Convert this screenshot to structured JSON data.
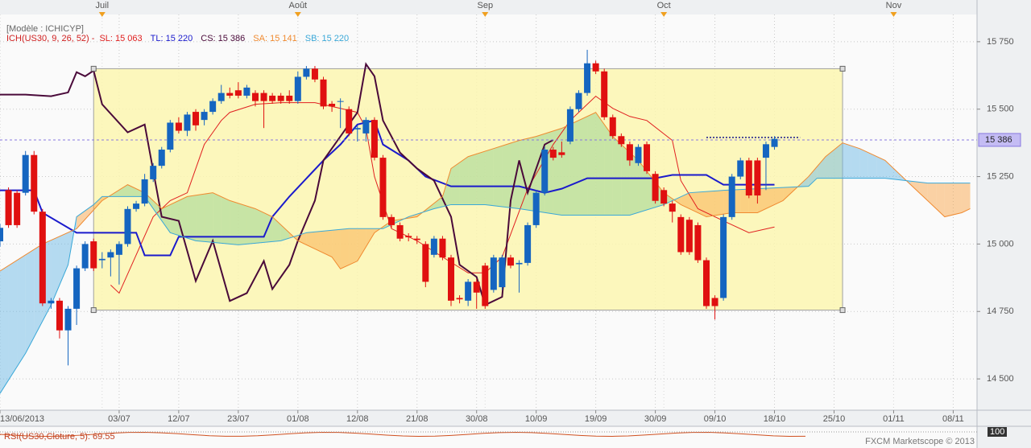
{
  "chart_data": {
    "type": "candlestick",
    "model_label": "[Modèle : ICHICYP]",
    "indicator_label": "ICH(US30, 9, 26, 52) -",
    "xlim": [
      0,
      114.8
    ],
    "ylim": [
      14384,
      15851
    ],
    "grid": true,
    "xticks": [
      {
        "value": 0,
        "label": "13/06/2013"
      },
      {
        "value": 14,
        "label": "03/07"
      },
      {
        "value": 21,
        "label": "12/07"
      },
      {
        "value": 28,
        "label": "23/07"
      },
      {
        "value": 35,
        "label": "01/08"
      },
      {
        "value": 42,
        "label": "12/08"
      },
      {
        "value": 49,
        "label": "21/08"
      },
      {
        "value": 56,
        "label": "30/08"
      },
      {
        "value": 63,
        "label": "10/09"
      },
      {
        "value": 70,
        "label": "19/09"
      },
      {
        "value": 77,
        "label": "30/09"
      },
      {
        "value": 84,
        "label": "09/10"
      },
      {
        "value": 91,
        "label": "18/10"
      },
      {
        "value": 98,
        "label": "25/10"
      },
      {
        "value": 105,
        "label": "01/11"
      },
      {
        "value": 112,
        "label": "08/11"
      }
    ],
    "x2ticks": [
      {
        "value": 12,
        "label": "Juil"
      },
      {
        "value": 35,
        "label": "Août"
      },
      {
        "value": 57,
        "label": "Sep"
      },
      {
        "value": 78,
        "label": "Oct"
      },
      {
        "value": 105,
        "label": "Nov"
      }
    ],
    "yticks": [
      {
        "value": 14500,
        "label": "14 500"
      },
      {
        "value": 14750,
        "label": "14 750"
      },
      {
        "value": 15000,
        "label": "15 000"
      },
      {
        "value": 15250,
        "label": "15 250"
      },
      {
        "value": 15500,
        "label": "15 500"
      },
      {
        "value": 15750,
        "label": "15 750"
      }
    ],
    "candles": {
      "up_color": "#1565c0",
      "down_color": "#e01010",
      "x": [
        0,
        1,
        2,
        3,
        4,
        5,
        6,
        7,
        8,
        9,
        10,
        11,
        12,
        13,
        14,
        15,
        16,
        17,
        18,
        19,
        20,
        21,
        22,
        23,
        24,
        25,
        26,
        27,
        28,
        29,
        30,
        31,
        32,
        33,
        34,
        35,
        36,
        37,
        38,
        39,
        40,
        41,
        42,
        43,
        44,
        45,
        46,
        47,
        48,
        49,
        50,
        51,
        52,
        53,
        54,
        55,
        56,
        57,
        58,
        59,
        60,
        61,
        62,
        63,
        64,
        65,
        66,
        67,
        68,
        69,
        70,
        71,
        72,
        73,
        74,
        75,
        76,
        77,
        78,
        79,
        80,
        81,
        82,
        83,
        84,
        85,
        86,
        87,
        88,
        89,
        90,
        91
      ],
      "open": [
        15010,
        15200,
        15190,
        15190,
        15330,
        15120,
        14780,
        14790,
        14680,
        14760,
        14910,
        15010,
        14940,
        14950,
        14960,
        15000,
        15130,
        15150,
        15240,
        15290,
        15350,
        15450,
        15420,
        15490,
        15460,
        15490,
        15530,
        15560,
        15570,
        15550,
        15560,
        15560,
        15550,
        15550,
        15550,
        15530,
        15620,
        15650,
        15610,
        15520,
        15530,
        15500,
        15425,
        15410,
        15460,
        15320,
        15100,
        15070,
        15030,
        15020,
        15000,
        14960,
        15020,
        14950,
        14800,
        14790,
        14860,
        14920,
        14830,
        14840,
        14950,
        14925,
        14930,
        15070,
        15190,
        15350,
        15340,
        15380,
        15500,
        15560,
        15670,
        15640,
        15470,
        15400,
        15370,
        15300,
        15370,
        15260,
        15200,
        15150,
        15100,
        15090,
        15070,
        14940,
        14800,
        14800,
        15100,
        15250,
        15310,
        15310,
        15320,
        15360
      ],
      "high": [
        15075,
        15210,
        15200,
        15345,
        15345,
        15130,
        14800,
        14800,
        14770,
        14920,
        15010,
        15020,
        14970,
        14980,
        15010,
        15140,
        15160,
        15260,
        15300,
        15360,
        15460,
        15470,
        15490,
        15500,
        15500,
        15540,
        15590,
        15580,
        15600,
        15590,
        15570,
        15570,
        15560,
        15560,
        15570,
        15640,
        15660,
        15660,
        15620,
        15530,
        15540,
        15510,
        15440,
        15470,
        15470,
        15330,
        15110,
        15080,
        15040,
        15030,
        15010,
        15030,
        15030,
        14960,
        14810,
        14870,
        14870,
        14930,
        14960,
        14960,
        14960,
        14940,
        15080,
        15200,
        15360,
        15360,
        15380,
        15510,
        15570,
        15720,
        15680,
        15650,
        15480,
        15410,
        15380,
        15370,
        15380,
        15270,
        15210,
        15160,
        15110,
        15100,
        15080,
        14950,
        14810,
        15110,
        15260,
        15320,
        15320,
        15320,
        15380,
        15400
      ],
      "low": [
        14990,
        15060,
        15060,
        15180,
        15110,
        14770,
        14760,
        14650,
        14550,
        14700,
        14900,
        14900,
        14910,
        14880,
        14850,
        14990,
        15120,
        15140,
        15230,
        15280,
        15340,
        15410,
        15400,
        15420,
        15440,
        15480,
        15520,
        15540,
        15540,
        15540,
        15510,
        15430,
        15520,
        15520,
        15520,
        15520,
        15610,
        15600,
        15500,
        15490,
        15430,
        15400,
        15380,
        15380,
        15310,
        15090,
        15060,
        15010,
        15010,
        15000,
        14840,
        14950,
        14940,
        14770,
        14780,
        14770,
        14760,
        14760,
        14820,
        14830,
        14910,
        14820,
        14920,
        15060,
        15180,
        15310,
        15320,
        15370,
        15490,
        15550,
        15630,
        15460,
        15390,
        15360,
        15290,
        15290,
        15260,
        15150,
        15140,
        15080,
        14960,
        14960,
        14930,
        14760,
        14720,
        14790,
        15090,
        15240,
        15170,
        15150,
        15200,
        15350
      ],
      "close": [
        15060,
        15070,
        15070,
        15330,
        15120,
        14780,
        14790,
        14680,
        14760,
        14910,
        15000,
        14910,
        14945,
        14970,
        15000,
        15130,
        15150,
        15240,
        15290,
        15350,
        15450,
        15420,
        15480,
        15440,
        15490,
        15530,
        15560,
        15550,
        15550,
        15580,
        15530,
        15530,
        15530,
        15530,
        15530,
        15620,
        15650,
        15610,
        15510,
        15510,
        15530,
        15410,
        15430,
        15460,
        15320,
        15100,
        15070,
        15020,
        15025,
        15015,
        14860,
        15020,
        14950,
        14790,
        14795,
        14860,
        14820,
        14770,
        14950,
        14950,
        14920,
        14930,
        15070,
        15190,
        15350,
        15320,
        15330,
        15500,
        15560,
        15670,
        15640,
        15470,
        15400,
        15370,
        15310,
        15360,
        15270,
        15160,
        15150,
        15120,
        14970,
        14970,
        14940,
        14770,
        14770,
        15100,
        15250,
        15310,
        15180,
        15180,
        15370,
        15390
      ]
    },
    "series": [
      {
        "name": "SL: 15 063",
        "color": "#e02020",
        "x": [
          13,
          14,
          18,
          20,
          22,
          24,
          26,
          27,
          30,
          33,
          37,
          40,
          42,
          43,
          44,
          46,
          49,
          52,
          55,
          57,
          59,
          62,
          65,
          67,
          70,
          72,
          74,
          76,
          79,
          80,
          82,
          85,
          88,
          91
        ],
        "values": [
          14848,
          14818,
          15101,
          15161,
          15190,
          15369,
          15458,
          15488,
          15518,
          15524,
          15524,
          15503,
          15488,
          15429,
          15250,
          15057,
          15012,
          14952,
          14893,
          14893,
          14952,
          15205,
          15369,
          15458,
          15548,
          15503,
          15473,
          15458,
          15384,
          15235,
          15131,
          15086,
          15042,
          15063
        ]
      },
      {
        "name": "TL: 15 220",
        "color": "#1a1acc",
        "x": [
          0,
          4,
          5,
          9,
          10,
          16,
          17,
          20,
          21,
          31,
          32,
          34,
          38,
          40,
          42,
          44,
          45,
          48,
          50,
          53,
          61,
          64,
          66,
          69,
          77,
          79,
          83,
          85,
          91
        ],
        "values": [
          15199,
          15199,
          15116,
          15042,
          15042,
          15042,
          14958,
          14958,
          15027,
          15027,
          15101,
          15176,
          15310,
          15369,
          15443,
          15458,
          15369,
          15310,
          15250,
          15214,
          15214,
          15190,
          15205,
          15244,
          15244,
          15256,
          15256,
          15220,
          15220
        ]
      },
      {
        "name": "CS: 15 386",
        "color": "#4a0a3a",
        "x": [
          0,
          3,
          6,
          8,
          9,
          10,
          11,
          12,
          15,
          17,
          19,
          21,
          23,
          25,
          27,
          29,
          31,
          32,
          34,
          35,
          37,
          38,
          40,
          42,
          43,
          44,
          45,
          47,
          49,
          51,
          53,
          54,
          56,
          57,
          59,
          60,
          61,
          62,
          64,
          65
        ],
        "values": [
          15554,
          15554,
          15548,
          15562,
          15637,
          15622,
          15643,
          15518,
          15414,
          15443,
          15101,
          15086,
          14863,
          15012,
          14789,
          14818,
          14937,
          14833,
          14923,
          15012,
          15161,
          15310,
          15399,
          15488,
          15667,
          15622,
          15458,
          15339,
          15280,
          15235,
          15101,
          14923,
          14878,
          14774,
          14804,
          15161,
          15310,
          15190,
          15369,
          15386
        ]
      },
      {
        "name": "SA: 15 141",
        "color": "#f08a30",
        "x": [
          0,
          5,
          9,
          12,
          15,
          17,
          19,
          22,
          25,
          27,
          30,
          32,
          35,
          37,
          39,
          40,
          42,
          44,
          46,
          49,
          52,
          53,
          55,
          58,
          61,
          63,
          66,
          70,
          72,
          75,
          78,
          80,
          83,
          86,
          89,
          92,
          95,
          97,
          99,
          101,
          104,
          107,
          110,
          111,
          113,
          114
        ],
        "values": [
          14900,
          15000,
          15057,
          15161,
          15220,
          15190,
          15131,
          15176,
          15190,
          15161,
          15131,
          15101,
          15012,
          14982,
          14952,
          14908,
          14937,
          15042,
          15086,
          15101,
          15176,
          15280,
          15324,
          15354,
          15384,
          15399,
          15429,
          15488,
          15399,
          15310,
          15190,
          15146,
          15101,
          15116,
          15116,
          15161,
          15250,
          15324,
          15375,
          15354,
          15310,
          15220,
          15131,
          15101,
          15116,
          15131
        ]
      },
      {
        "name": "SB: 15 220",
        "color": "#3aa8d8",
        "x": [
          0,
          3,
          6,
          8,
          9,
          11,
          12,
          17,
          20,
          23,
          28,
          33,
          36,
          41,
          45,
          48,
          51,
          53,
          57,
          61,
          66,
          74,
          78,
          81,
          85,
          95,
          96,
          104,
          109,
          114
        ],
        "values": [
          14446,
          14595,
          14774,
          14923,
          15101,
          15146,
          15176,
          15176,
          15042,
          15012,
          14997,
          15012,
          15042,
          15057,
          15057,
          15101,
          15131,
          15146,
          15146,
          15131,
          15107,
          15107,
          15146,
          15190,
          15199,
          15214,
          15244,
          15244,
          15226,
          15226
        ]
      }
    ],
    "last_price": {
      "value": 15386,
      "label": "15 386",
      "color": "#8878e0"
    },
    "rectangle": {
      "x": [
        11,
        99
      ],
      "y": [
        14755,
        15650
      ],
      "color": "#fbf6b0"
    },
    "level_line": {
      "x": [
        83,
        94
      ],
      "value": 15395,
      "color": "#1a1a8c"
    },
    "rsi": {
      "label": "RSI(US30,Cloture, 5): 69.55",
      "yticks": [
        100
      ]
    },
    "watermark": "FXCM Marketscope © 2013"
  }
}
